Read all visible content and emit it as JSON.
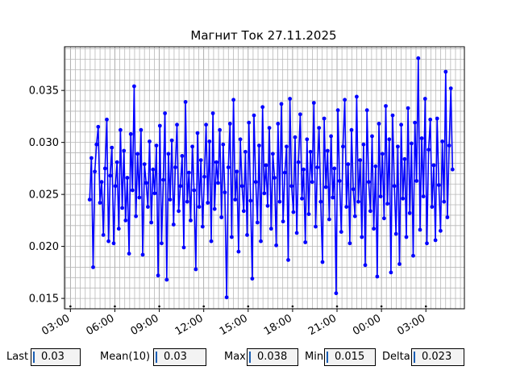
{
  "chart_data": {
    "type": "line",
    "title": "Магнит Ток 27.11.2025",
    "xlabel": "",
    "ylabel": "",
    "x_ticks": [
      "03:00",
      "06:00",
      "09:00",
      "12:00",
      "15:00",
      "18:00",
      "21:00",
      "00:00",
      "03:00"
    ],
    "x_tick_hours": [
      3,
      6,
      9,
      12,
      15,
      18,
      21,
      24,
      27
    ],
    "xlim": [
      2.6,
      29.6
    ],
    "ylim": [
      0.014,
      0.0392
    ],
    "y_ticks": [
      0.015,
      0.02,
      0.025,
      0.03,
      0.035
    ],
    "y_tick_labels": [
      "0.015",
      "0.020",
      "0.025",
      "0.030",
      "0.035"
    ],
    "grid": true,
    "marker": "circle",
    "series": [
      {
        "color": "#0000ff",
        "x_start_hour": 4.3,
        "x_end_hour": 28.8,
        "values": [
          0.0245,
          0.0285,
          0.018,
          0.0272,
          0.0298,
          0.0315,
          0.0242,
          0.0262,
          0.0211,
          0.0275,
          0.0322,
          0.0205,
          0.0268,
          0.0295,
          0.0203,
          0.0258,
          0.0281,
          0.0217,
          0.0312,
          0.0237,
          0.0292,
          0.0225,
          0.0266,
          0.0193,
          0.0308,
          0.0254,
          0.0354,
          0.0229,
          0.0289,
          0.0247,
          0.0312,
          0.0192,
          0.0279,
          0.0261,
          0.0238,
          0.0301,
          0.0223,
          0.0274,
          0.0251,
          0.0297,
          0.0172,
          0.0316,
          0.0203,
          0.0264,
          0.0328,
          0.0168,
          0.0289,
          0.0245,
          0.0302,
          0.0221,
          0.0276,
          0.0317,
          0.0234,
          0.0258,
          0.0287,
          0.0199,
          0.0339,
          0.0243,
          0.0271,
          0.0225,
          0.0296,
          0.0254,
          0.0178,
          0.0309,
          0.0238,
          0.0283,
          0.0219,
          0.0267,
          0.0317,
          0.0242,
          0.0301,
          0.0205,
          0.0328,
          0.0236,
          0.0281,
          0.0261,
          0.0312,
          0.0228,
          0.0298,
          0.0252,
          0.0151,
          0.0276,
          0.0318,
          0.0209,
          0.0341,
          0.0245,
          0.0272,
          0.0195,
          0.0303,
          0.0258,
          0.0234,
          0.0291,
          0.0211,
          0.0319,
          0.0244,
          0.0169,
          0.0326,
          0.0262,
          0.0223,
          0.0297,
          0.0205,
          0.0334,
          0.0251,
          0.0278,
          0.0239,
          0.0314,
          0.0217,
          0.0289,
          0.0266,
          0.0201,
          0.0318,
          0.0243,
          0.0337,
          0.0224,
          0.0271,
          0.0296,
          0.0187,
          0.0342,
          0.0258,
          0.0233,
          0.0305,
          0.0213,
          0.0281,
          0.0327,
          0.0246,
          0.0274,
          0.0204,
          0.0303,
          0.0231,
          0.0291,
          0.0262,
          0.0338,
          0.0219,
          0.0276,
          0.0314,
          0.0243,
          0.0185,
          0.0323,
          0.0257,
          0.0292,
          0.0226,
          0.0306,
          0.0247,
          0.0275,
          0.0155,
          0.0331,
          0.0263,
          0.0214,
          0.0296,
          0.0341,
          0.0238,
          0.0279,
          0.0203,
          0.0312,
          0.0255,
          0.0229,
          0.0344,
          0.0243,
          0.0283,
          0.0209,
          0.0298,
          0.0182,
          0.0331,
          0.0262,
          0.0234,
          0.0306,
          0.0217,
          0.0277,
          0.0171,
          0.0318,
          0.0248,
          0.0289,
          0.0227,
          0.0335,
          0.0241,
          0.0303,
          0.0175,
          0.0326,
          0.0258,
          0.0212,
          0.0296,
          0.0183,
          0.0317,
          0.0246,
          0.0284,
          0.0209,
          0.0333,
          0.0232,
          0.0299,
          0.0191,
          0.0319,
          0.0263,
          0.0381,
          0.0216,
          0.0304,
          0.0248,
          0.0342,
          0.0203,
          0.0293,
          0.0322,
          0.0238,
          0.0278,
          0.0206,
          0.0323,
          0.0259,
          0.0215,
          0.0301,
          0.0243,
          0.0368,
          0.0228,
          0.0297,
          0.0352,
          0.0274
        ]
      }
    ]
  },
  "stats": [
    {
      "label": "Last",
      "value": "0.03"
    },
    {
      "label": "Mean(10)",
      "value": "0.03"
    },
    {
      "label": "Max",
      "value": "0.038"
    },
    {
      "label": "Min",
      "value": "0.015"
    },
    {
      "label": "Delta",
      "value": "0.023"
    }
  ]
}
